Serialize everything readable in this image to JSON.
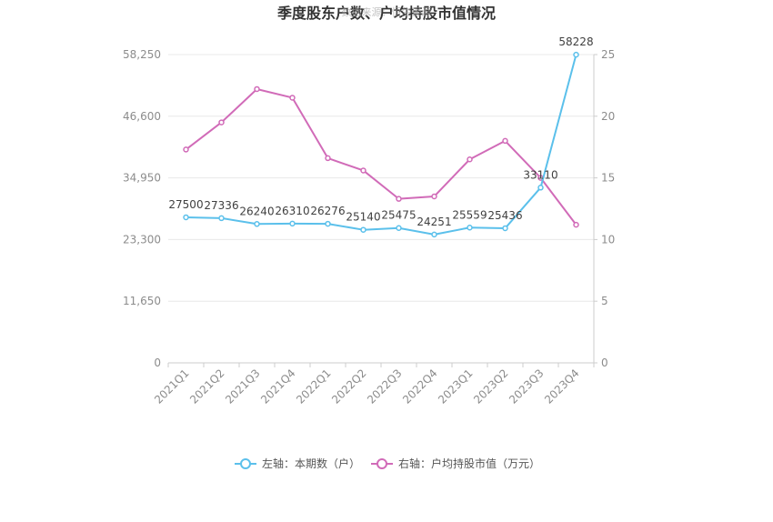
{
  "chart_data": {
    "type": "line",
    "title": "季度股东户数、户均持股市值情况",
    "watermark": "数据来源：恒生聚源",
    "categories": [
      "2021Q1",
      "2021Q2",
      "2021Q3",
      "2021Q4",
      "2022Q1",
      "2022Q2",
      "2022Q3",
      "2022Q4",
      "2023Q1",
      "2023Q2",
      "2023Q3",
      "2023Q4"
    ],
    "left_axis": {
      "min": 0,
      "max": 58250,
      "ticks": [
        0,
        11650,
        23300,
        34950,
        46600,
        58250
      ],
      "tick_labels": [
        "0",
        "11,650",
        "23,300",
        "34,950",
        "46,600",
        "58,250"
      ]
    },
    "right_axis": {
      "min": 0,
      "max": 25,
      "ticks": [
        0,
        5,
        10,
        15,
        20,
        25
      ],
      "tick_labels": [
        "0",
        "5",
        "10",
        "15",
        "20",
        "25"
      ]
    },
    "series": [
      {
        "name": "左轴：本期数（户）",
        "axis": "left",
        "color": "#5bc0eb",
        "values": [
          27500,
          27336,
          26240,
          26310,
          26276,
          25140,
          25475,
          24251,
          25559,
          25436,
          33110,
          58228
        ],
        "labels": [
          "27500",
          "27336",
          "26240",
          "26310",
          "26276",
          "25140",
          "25475",
          "24251",
          "25559",
          "25436",
          "33110",
          "58228"
        ]
      },
      {
        "name": "右轴：户均持股市值（万元）",
        "axis": "right",
        "color": "#d16bb8",
        "values": [
          17.3,
          19.5,
          22.2,
          21.5,
          16.6,
          15.6,
          13.3,
          13.5,
          16.5,
          18.0,
          15.0,
          11.2
        ]
      }
    ],
    "grid": true,
    "legend_position": "bottom"
  }
}
